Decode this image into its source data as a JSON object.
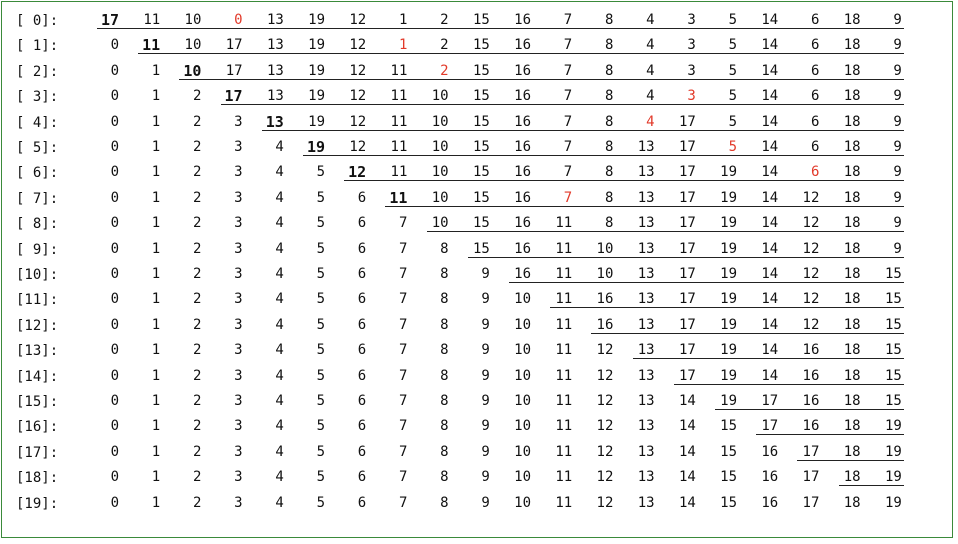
{
  "rows": [
    {
      "label": "[ 0]:",
      "values": [
        17,
        11,
        10,
        0,
        13,
        19,
        12,
        1,
        2,
        15,
        16,
        7,
        8,
        4,
        3,
        5,
        14,
        6,
        18,
        9
      ],
      "bold": 0,
      "red": 3,
      "ul": [
        0,
        19
      ]
    },
    {
      "label": "[ 1]:",
      "values": [
        0,
        11,
        10,
        17,
        13,
        19,
        12,
        1,
        2,
        15,
        16,
        7,
        8,
        4,
        3,
        5,
        14,
        6,
        18,
        9
      ],
      "bold": 1,
      "red": 7,
      "ul": [
        1,
        19
      ]
    },
    {
      "label": "[ 2]:",
      "values": [
        0,
        1,
        10,
        17,
        13,
        19,
        12,
        11,
        2,
        15,
        16,
        7,
        8,
        4,
        3,
        5,
        14,
        6,
        18,
        9
      ],
      "bold": 2,
      "red": 8,
      "ul": [
        2,
        19
      ]
    },
    {
      "label": "[ 3]:",
      "values": [
        0,
        1,
        2,
        17,
        13,
        19,
        12,
        11,
        10,
        15,
        16,
        7,
        8,
        4,
        3,
        5,
        14,
        6,
        18,
        9
      ],
      "bold": 3,
      "red": 14,
      "ul": [
        3,
        19
      ]
    },
    {
      "label": "[ 4]:",
      "values": [
        0,
        1,
        2,
        3,
        13,
        19,
        12,
        11,
        10,
        15,
        16,
        7,
        8,
        4,
        17,
        5,
        14,
        6,
        18,
        9
      ],
      "bold": 4,
      "red": 13,
      "ul": [
        4,
        19
      ]
    },
    {
      "label": "[ 5]:",
      "values": [
        0,
        1,
        2,
        3,
        4,
        19,
        12,
        11,
        10,
        15,
        16,
        7,
        8,
        13,
        17,
        5,
        14,
        6,
        18,
        9
      ],
      "bold": 5,
      "red": 15,
      "ul": [
        5,
        19
      ]
    },
    {
      "label": "[ 6]:",
      "values": [
        0,
        1,
        2,
        3,
        4,
        5,
        12,
        11,
        10,
        15,
        16,
        7,
        8,
        13,
        17,
        19,
        14,
        6,
        18,
        9
      ],
      "bold": 6,
      "red": 17,
      "ul": [
        6,
        19
      ]
    },
    {
      "label": "[ 7]:",
      "values": [
        0,
        1,
        2,
        3,
        4,
        5,
        6,
        11,
        10,
        15,
        16,
        7,
        8,
        13,
        17,
        19,
        14,
        12,
        18,
        9
      ],
      "bold": 7,
      "red": 11,
      "ul": [
        7,
        19
      ]
    },
    {
      "label": "[ 8]:",
      "values": [
        0,
        1,
        2,
        3,
        4,
        5,
        6,
        7,
        10,
        15,
        16,
        11,
        8,
        13,
        17,
        19,
        14,
        12,
        18,
        9
      ],
      "bold": -1,
      "red": -1,
      "ul": [
        8,
        19
      ]
    },
    {
      "label": "[ 9]:",
      "values": [
        0,
        1,
        2,
        3,
        4,
        5,
        6,
        7,
        8,
        15,
        16,
        11,
        10,
        13,
        17,
        19,
        14,
        12,
        18,
        9
      ],
      "bold": -1,
      "red": -1,
      "ul": [
        9,
        19
      ]
    },
    {
      "label": "[10]:",
      "values": [
        0,
        1,
        2,
        3,
        4,
        5,
        6,
        7,
        8,
        9,
        16,
        11,
        10,
        13,
        17,
        19,
        14,
        12,
        18,
        15
      ],
      "bold": -1,
      "red": -1,
      "ul": [
        10,
        19
      ]
    },
    {
      "label": "[11]:",
      "values": [
        0,
        1,
        2,
        3,
        4,
        5,
        6,
        7,
        8,
        9,
        10,
        11,
        16,
        13,
        17,
        19,
        14,
        12,
        18,
        15
      ],
      "bold": -1,
      "red": -1,
      "ul": [
        11,
        19
      ]
    },
    {
      "label": "[12]:",
      "values": [
        0,
        1,
        2,
        3,
        4,
        5,
        6,
        7,
        8,
        9,
        10,
        11,
        16,
        13,
        17,
        19,
        14,
        12,
        18,
        15
      ],
      "bold": -1,
      "red": -1,
      "ul": [
        12,
        19
      ]
    },
    {
      "label": "[13]:",
      "values": [
        0,
        1,
        2,
        3,
        4,
        5,
        6,
        7,
        8,
        9,
        10,
        11,
        12,
        13,
        17,
        19,
        14,
        16,
        18,
        15
      ],
      "bold": -1,
      "red": -1,
      "ul": [
        13,
        19
      ]
    },
    {
      "label": "[14]:",
      "values": [
        0,
        1,
        2,
        3,
        4,
        5,
        6,
        7,
        8,
        9,
        10,
        11,
        12,
        13,
        17,
        19,
        14,
        16,
        18,
        15
      ],
      "bold": -1,
      "red": -1,
      "ul": [
        14,
        19
      ]
    },
    {
      "label": "[15]:",
      "values": [
        0,
        1,
        2,
        3,
        4,
        5,
        6,
        7,
        8,
        9,
        10,
        11,
        12,
        13,
        14,
        19,
        17,
        16,
        18,
        15
      ],
      "bold": -1,
      "red": -1,
      "ul": [
        15,
        19
      ]
    },
    {
      "label": "[16]:",
      "values": [
        0,
        1,
        2,
        3,
        4,
        5,
        6,
        7,
        8,
        9,
        10,
        11,
        12,
        13,
        14,
        15,
        17,
        16,
        18,
        19
      ],
      "bold": -1,
      "red": -1,
      "ul": [
        16,
        19
      ]
    },
    {
      "label": "[17]:",
      "values": [
        0,
        1,
        2,
        3,
        4,
        5,
        6,
        7,
        8,
        9,
        10,
        11,
        12,
        13,
        14,
        15,
        16,
        17,
        18,
        19
      ],
      "bold": -1,
      "red": -1,
      "ul": [
        17,
        19
      ]
    },
    {
      "label": "[18]:",
      "values": [
        0,
        1,
        2,
        3,
        4,
        5,
        6,
        7,
        8,
        9,
        10,
        11,
        12,
        13,
        14,
        15,
        16,
        17,
        18,
        19
      ],
      "bold": -1,
      "red": -1,
      "ul": [
        18,
        19
      ]
    },
    {
      "label": "[19]:",
      "values": [
        0,
        1,
        2,
        3,
        4,
        5,
        6,
        7,
        8,
        9,
        10,
        11,
        12,
        13,
        14,
        15,
        16,
        17,
        18,
        19
      ],
      "bold": -1,
      "red": -1,
      "ul": null
    }
  ],
  "colors": {
    "frame": "#3a8a3a",
    "text": "#111111",
    "highlight": "#e23a2a",
    "underline": "#222222"
  }
}
